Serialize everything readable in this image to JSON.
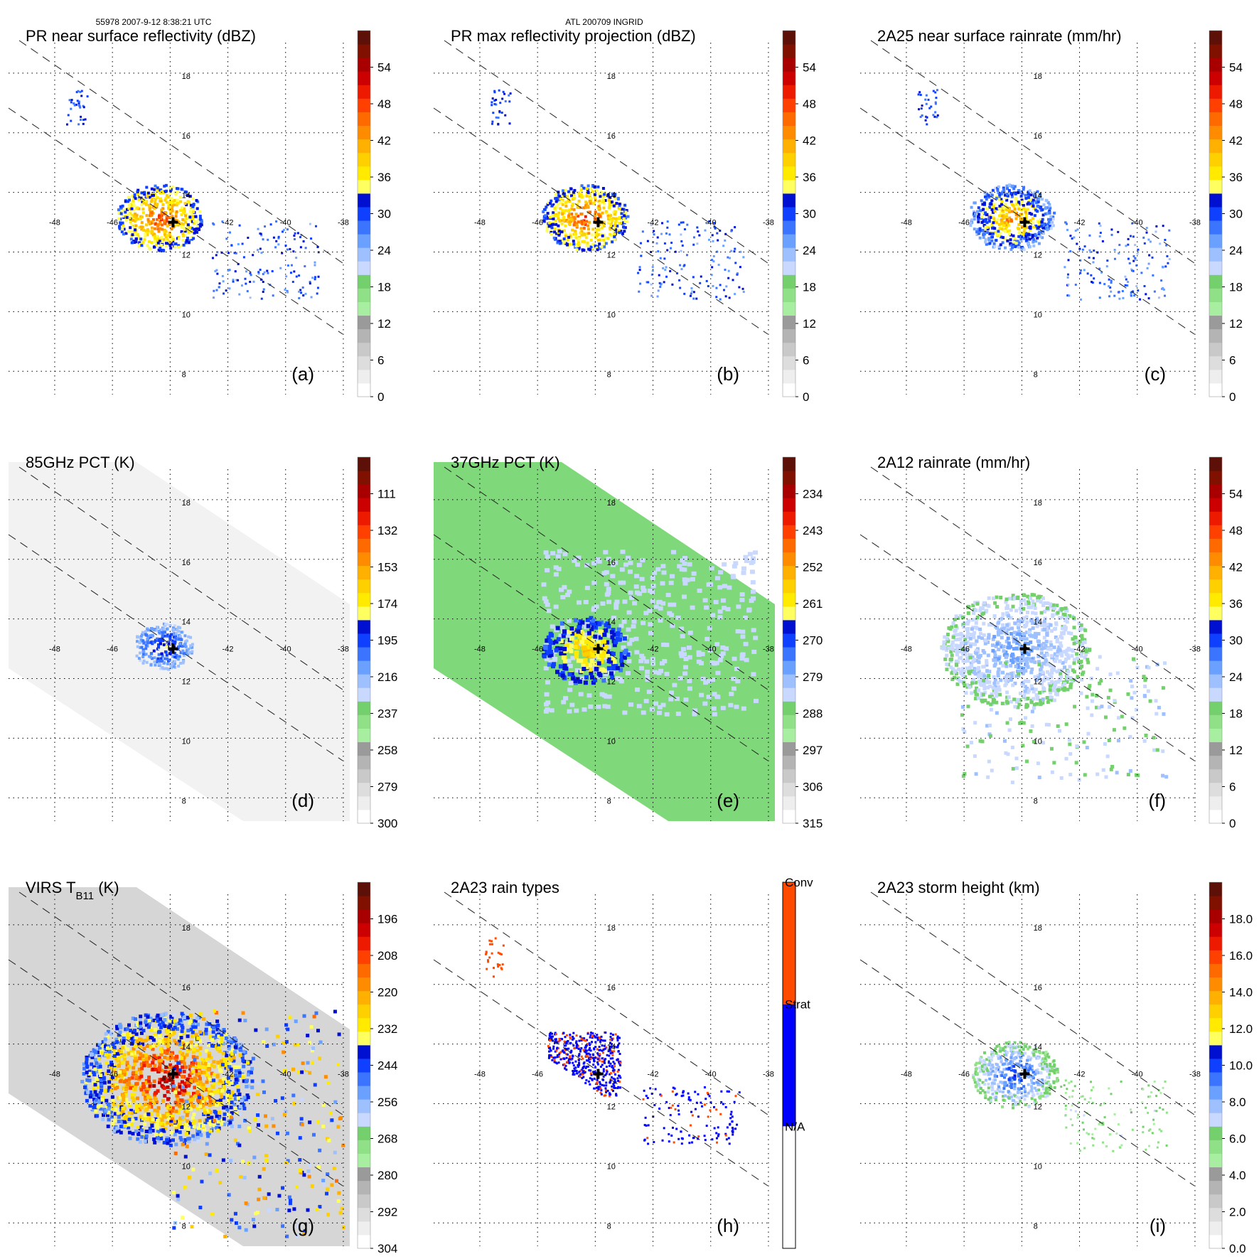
{
  "header": {
    "orbit_info": "55978 2007-9-12 8:38:21 UTC",
    "storm_info": "ATL 200709 INGRID"
  },
  "colors": {
    "gray": [
      "#ffffff",
      "#eeeeee",
      "#dddddd",
      "#c9c9c9",
      "#b4b4b4",
      "#9a9a9a"
    ],
    "green": [
      "#a8eea0",
      "#8fe087",
      "#74d06c"
    ],
    "blue": [
      "#c8d8ff",
      "#9ec0ff",
      "#6aa0ff",
      "#3a74ff",
      "#1040ff",
      "#0010d0"
    ],
    "yellow": [
      "#ffff60",
      "#ffea00",
      "#ffd000"
    ],
    "orange": [
      "#ffb000",
      "#ff8c00",
      "#ff6a00"
    ],
    "red": [
      "#ff4000",
      "#ee1a00",
      "#cc0000",
      "#a80000",
      "#801000",
      "#5c1008"
    ],
    "rain_type": {
      "na": "#ffffff",
      "strat": "#0000ff",
      "conv": "#ff4a00"
    },
    "background_37": "#7fd87a",
    "background_85": "#f2f2f2"
  },
  "map_grid": {
    "lon_ticks": [
      "-48",
      "-46",
      "-42",
      "-40",
      "-38"
    ],
    "lat_ticks": [
      "18",
      "16",
      "14",
      "12",
      "10",
      "8"
    ]
  },
  "chart_data": [
    {
      "id": "a",
      "type": "heatmap",
      "title": "PR near surface reflectivity (dBZ)",
      "panel_label": "(a)",
      "colorbar": {
        "kind": "dbz",
        "ticks": [
          "0",
          "6",
          "12",
          "18",
          "24",
          "30",
          "36",
          "42",
          "48",
          "54"
        ],
        "range": [
          0,
          60
        ]
      },
      "swath": "pr_narrow",
      "storm_center": {
        "lon": -43.9,
        "lat": 13.0
      }
    },
    {
      "id": "b",
      "type": "heatmap",
      "title": "PR max reflectivity projection (dBZ)",
      "panel_label": "(b)",
      "colorbar": {
        "kind": "dbz",
        "ticks": [
          "0",
          "6",
          "12",
          "18",
          "24",
          "30",
          "36",
          "42",
          "48",
          "54"
        ],
        "range": [
          0,
          60
        ]
      },
      "swath": "pr_narrow",
      "storm_center": {
        "lon": -43.9,
        "lat": 13.0
      }
    },
    {
      "id": "c",
      "type": "heatmap",
      "title": "2A25 near surface rainrate (mm/hr)",
      "panel_label": "(c)",
      "colorbar": {
        "kind": "rain",
        "ticks": [
          "0",
          "6",
          "12",
          "18",
          "24",
          "30",
          "36",
          "42",
          "48",
          "54"
        ],
        "range": [
          0,
          60
        ]
      },
      "swath": "pr_narrow",
      "storm_center": {
        "lon": -43.9,
        "lat": 13.0
      }
    },
    {
      "id": "d",
      "type": "heatmap",
      "title": "85GHz PCT (K)",
      "panel_label": "(d)",
      "colorbar": {
        "kind": "pct",
        "ticks": [
          "300",
          "279",
          "258",
          "237",
          "216",
          "195",
          "174",
          "153",
          "132",
          "111"
        ],
        "range": [
          90,
          300
        ]
      },
      "swath": "tmi_wide",
      "storm_center": {
        "lon": -43.9,
        "lat": 13.0
      }
    },
    {
      "id": "e",
      "type": "heatmap",
      "title": "37GHz PCT (K)",
      "panel_label": "(e)",
      "colorbar": {
        "kind": "pct",
        "ticks": [
          "315",
          "306",
          "297",
          "288",
          "279",
          "270",
          "261",
          "252",
          "243",
          "234"
        ],
        "range": [
          225,
          315
        ]
      },
      "swath": "tmi_wide",
      "storm_center": {
        "lon": -43.9,
        "lat": 13.0
      }
    },
    {
      "id": "f",
      "type": "heatmap",
      "title": "2A12 rainrate (mm/hr)",
      "panel_label": "(f)",
      "colorbar": {
        "kind": "rain",
        "ticks": [
          "0",
          "6",
          "12",
          "18",
          "24",
          "30",
          "36",
          "42",
          "48",
          "54"
        ],
        "range": [
          0,
          60
        ]
      },
      "swath": "tmi_wide",
      "storm_center": {
        "lon": -43.9,
        "lat": 13.0
      }
    },
    {
      "id": "g",
      "type": "heatmap",
      "title": "VIRS T",
      "title_sub": "B11",
      "title_suffix": " (K)",
      "panel_label": "(g)",
      "colorbar": {
        "kind": "pct",
        "ticks": [
          "304",
          "292",
          "280",
          "268",
          "256",
          "244",
          "232",
          "220",
          "208",
          "196"
        ],
        "range": [
          184,
          304
        ]
      },
      "swath": "virs_wide",
      "storm_center": {
        "lon": -43.9,
        "lat": 13.0
      }
    },
    {
      "id": "h",
      "type": "heatmap",
      "title": "2A23 rain types",
      "panel_label": "(h)",
      "colorbar": {
        "kind": "categorical",
        "ticks": [
          "N/A",
          "Strat",
          "Conv"
        ]
      },
      "swath": "pr_narrow",
      "storm_center": {
        "lon": -43.9,
        "lat": 13.0
      }
    },
    {
      "id": "i",
      "type": "heatmap",
      "title": "2A23 storm height (km)",
      "panel_label": "(i)",
      "colorbar": {
        "kind": "height",
        "ticks": [
          "0.0",
          "2.0",
          "4.0",
          "6.0",
          "8.0",
          "10.0",
          "12.0",
          "14.0",
          "16.0",
          "18.0"
        ],
        "range": [
          0,
          20
        ]
      },
      "swath": "pr_narrow",
      "storm_center": {
        "lon": -43.9,
        "lat": 13.0
      }
    }
  ]
}
